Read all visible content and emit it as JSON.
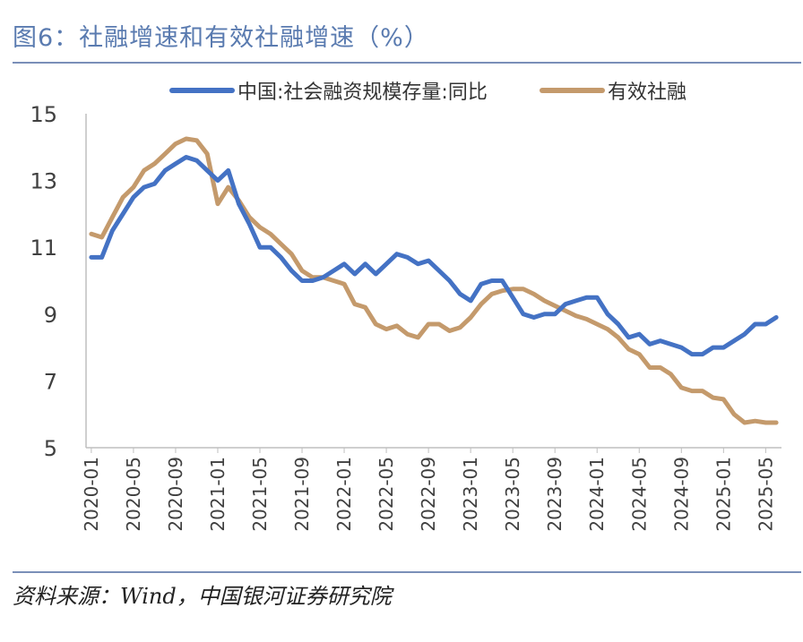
{
  "figure_title": "图6：社融增速和有效社融增速（%）",
  "source_text": "资料来源：Wind，中国银河证券研究院",
  "chart_data": {
    "type": "line",
    "title": "",
    "xlabel": "",
    "ylabel": "",
    "ylim": [
      5,
      15
    ],
    "yticks": [
      5,
      7,
      9,
      11,
      13,
      15
    ],
    "grid": false,
    "legend_position": "top",
    "x_tick_labels": [
      "2020-01",
      "2020-05",
      "2020-09",
      "2021-01",
      "2021-05",
      "2021-09",
      "2022-01",
      "2022-05",
      "2022-09",
      "2023-01",
      "2023-05",
      "2023-09",
      "2024-01",
      "2024-05",
      "2024-09",
      "2025-01",
      "2025-05"
    ],
    "x": [
      "2020-01",
      "2020-02",
      "2020-03",
      "2020-04",
      "2020-05",
      "2020-06",
      "2020-07",
      "2020-08",
      "2020-09",
      "2020-10",
      "2020-11",
      "2020-12",
      "2021-01",
      "2021-02",
      "2021-03",
      "2021-04",
      "2021-05",
      "2021-06",
      "2021-07",
      "2021-08",
      "2021-09",
      "2021-10",
      "2021-11",
      "2021-12",
      "2022-01",
      "2022-02",
      "2022-03",
      "2022-04",
      "2022-05",
      "2022-06",
      "2022-07",
      "2022-08",
      "2022-09",
      "2022-10",
      "2022-11",
      "2022-12",
      "2023-01",
      "2023-02",
      "2023-03",
      "2023-04",
      "2023-05",
      "2023-06",
      "2023-07",
      "2023-08",
      "2023-09",
      "2023-10",
      "2023-11",
      "2023-12",
      "2024-01",
      "2024-02",
      "2024-03",
      "2024-04",
      "2024-05",
      "2024-06",
      "2024-07",
      "2024-08",
      "2024-09",
      "2024-10",
      "2024-11",
      "2024-12",
      "2025-01",
      "2025-02",
      "2025-03",
      "2025-04",
      "2025-05",
      "2025-06"
    ],
    "series": [
      {
        "name": "中国:社会融资规模存量:同比",
        "color": "#4472c4",
        "values": [
          10.7,
          10.7,
          11.5,
          12.0,
          12.5,
          12.8,
          12.9,
          13.3,
          13.5,
          13.7,
          13.6,
          13.3,
          13.0,
          13.3,
          12.3,
          11.7,
          11.0,
          11.0,
          10.7,
          10.3,
          10.0,
          10.0,
          10.1,
          10.3,
          10.5,
          10.2,
          10.5,
          10.2,
          10.5,
          10.8,
          10.7,
          10.5,
          10.6,
          10.3,
          10.0,
          9.6,
          9.4,
          9.9,
          10.0,
          10.0,
          9.5,
          9.0,
          8.9,
          9.0,
          9.0,
          9.3,
          9.4,
          9.5,
          9.5,
          9.0,
          8.7,
          8.3,
          8.4,
          8.1,
          8.2,
          8.1,
          8.0,
          7.8,
          7.8,
          8.0,
          8.0,
          8.2,
          8.4,
          8.7,
          8.7,
          8.9
        ]
      },
      {
        "name": "有效社融",
        "color": "#c49a6c",
        "values": [
          11.4,
          11.3,
          11.9,
          12.5,
          12.8,
          13.3,
          13.5,
          13.8,
          14.1,
          14.25,
          14.2,
          13.8,
          12.3,
          12.8,
          12.4,
          11.9,
          11.6,
          11.4,
          11.1,
          10.8,
          10.3,
          10.1,
          10.1,
          10.0,
          9.9,
          9.3,
          9.2,
          8.7,
          8.55,
          8.65,
          8.4,
          8.3,
          8.7,
          8.7,
          8.5,
          8.6,
          8.9,
          9.3,
          9.6,
          9.7,
          9.75,
          9.75,
          9.6,
          9.4,
          9.25,
          9.1,
          8.95,
          8.85,
          8.7,
          8.55,
          8.3,
          7.95,
          7.8,
          7.4,
          7.4,
          7.2,
          6.8,
          6.7,
          6.7,
          6.5,
          6.45,
          6.0,
          5.75,
          5.8,
          5.75,
          5.75
        ]
      }
    ]
  }
}
